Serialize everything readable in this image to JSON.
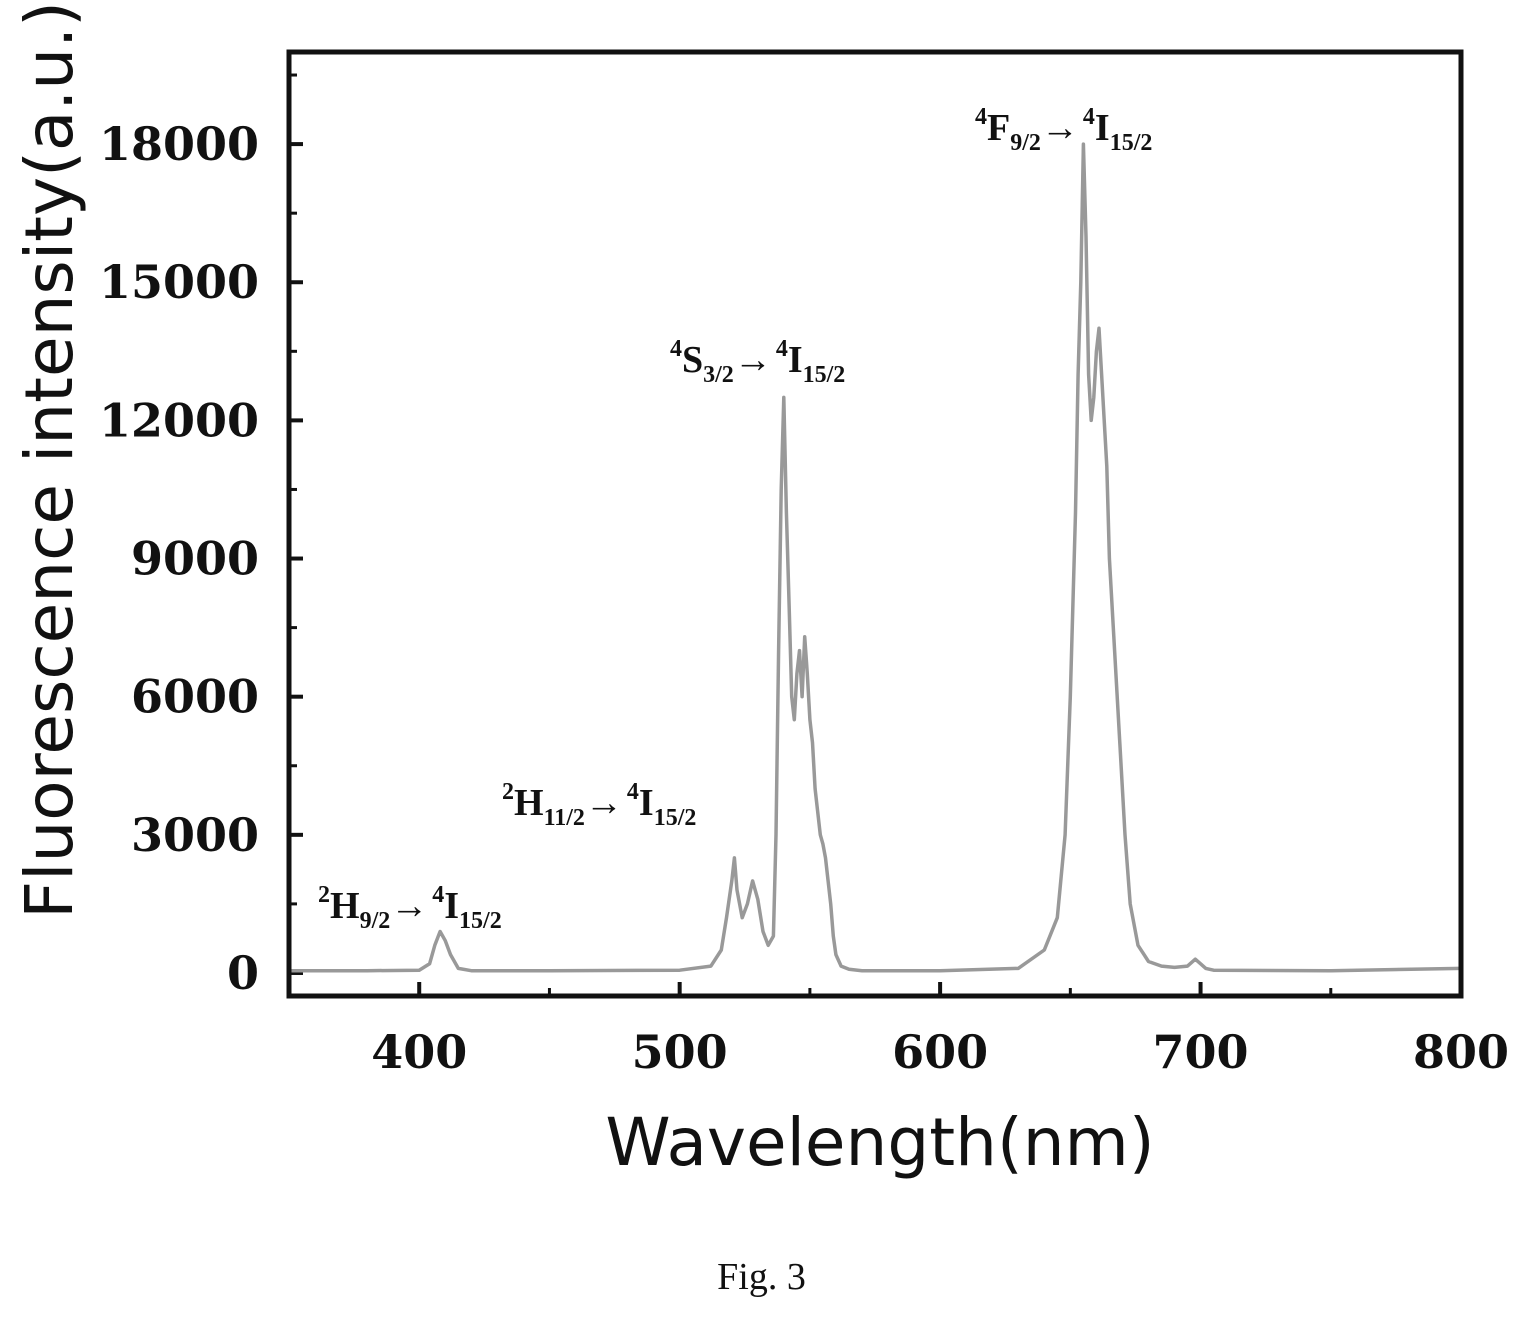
{
  "chart_data": {
    "type": "line",
    "xlabel": "Wavelength(nm)",
    "ylabel": "Fluorescence intensity(a.u.)",
    "xlim": [
      350,
      800
    ],
    "ylim": [
      -500,
      20000
    ],
    "x_ticks": [
      400,
      500,
      600,
      700,
      800
    ],
    "y_ticks": [
      0,
      3000,
      6000,
      9000,
      12000,
      15000,
      18000
    ],
    "grid": false,
    "series_color": "#999999",
    "series": [
      {
        "x": [
          350,
          380,
          400,
          404,
          406,
          408,
          410,
          412,
          415,
          420,
          450,
          500,
          512,
          516,
          518,
          520,
          521,
          522,
          524,
          526,
          528,
          530,
          532,
          534,
          536,
          537,
          538,
          539,
          540,
          541,
          542,
          543,
          544,
          545,
          546,
          547,
          548,
          549,
          550,
          551,
          552,
          553,
          554,
          555,
          556,
          557,
          558,
          559,
          560,
          562,
          565,
          570,
          600,
          630,
          640,
          645,
          648,
          650,
          652,
          653,
          654,
          655,
          656,
          657,
          658,
          659,
          660,
          661,
          662,
          663,
          664,
          665,
          667,
          669,
          671,
          673,
          676,
          680,
          685,
          690,
          695,
          698,
          700,
          702,
          705,
          750,
          800
        ],
        "y": [
          50,
          50,
          60,
          200,
          600,
          900,
          700,
          400,
          100,
          50,
          50,
          60,
          150,
          500,
          1200,
          2000,
          2500,
          1800,
          1200,
          1500,
          2000,
          1600,
          900,
          600,
          800,
          3000,
          7000,
          10500,
          12500,
          10000,
          8000,
          6000,
          5500,
          6500,
          7000,
          6000,
          7300,
          6500,
          5500,
          5000,
          4000,
          3500,
          3000,
          2800,
          2500,
          2000,
          1500,
          800,
          400,
          150,
          80,
          50,
          50,
          100,
          500,
          1200,
          3000,
          6000,
          10000,
          13000,
          15000,
          18000,
          16000,
          13000,
          12000,
          12500,
          13500,
          14000,
          13000,
          12000,
          11000,
          9000,
          7000,
          5000,
          3000,
          1500,
          600,
          250,
          150,
          120,
          150,
          300,
          200,
          100,
          60,
          50,
          100
        ]
      }
    ],
    "annotations": [
      {
        "main": "H",
        "upper": "2",
        "lower": "9/2",
        "arrow": "→",
        "target": "I",
        "target_upper": "4",
        "target_lower": "15/2"
      },
      {
        "main": "H",
        "upper": "2",
        "lower": "11/2",
        "arrow": "→",
        "target": "I",
        "target_upper": "4",
        "target_lower": "15/2"
      },
      {
        "main": "S",
        "upper": "4",
        "lower": "3/2",
        "arrow": "→",
        "target": "I",
        "target_upper": "4",
        "target_lower": "15/2"
      },
      {
        "main": "F",
        "upper": "4",
        "lower": "9/2",
        "arrow": "→",
        "target": "I",
        "target_upper": "4",
        "target_lower": "15/2"
      }
    ]
  },
  "caption": "Fig. 3"
}
